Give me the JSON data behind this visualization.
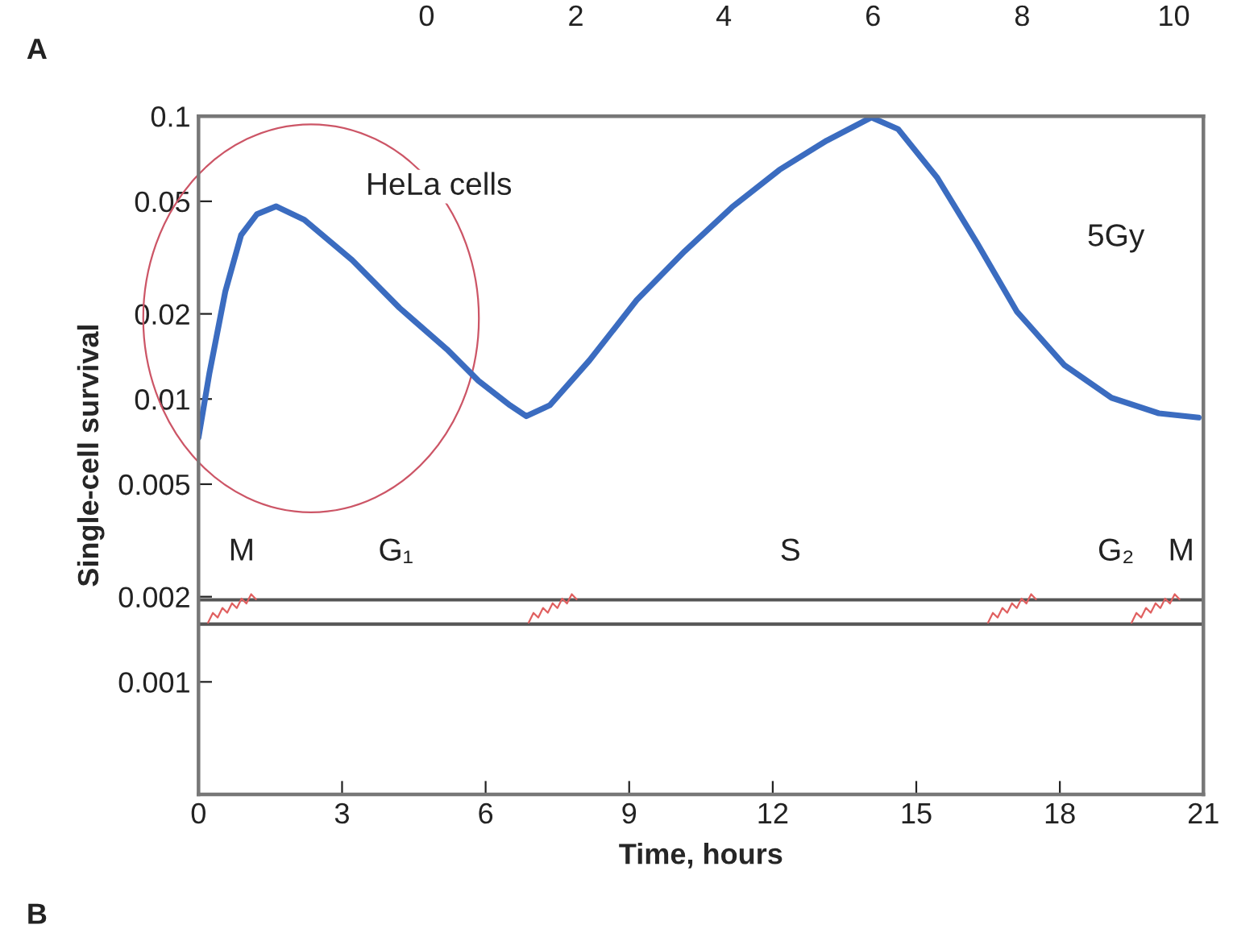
{
  "chart_data": {
    "type": "line",
    "xlabel": "Time, hours",
    "ylabel": "Single-cell survival",
    "series": [
      {
        "color": "#3b6cc0",
        "x": [
          0,
          0.23,
          0.56,
          0.89,
          1.22,
          1.62,
          2.21,
          3.21,
          4.2,
          5.19,
          5.85,
          6.51,
          6.85,
          7.34,
          8.17,
          9.16,
          10.16,
          11.15,
          12.14,
          13.13,
          14.06,
          14.62,
          15.44,
          16.27,
          17.1,
          18.09,
          19.08,
          20.07,
          20.9
        ],
        "values": [
          0.0073,
          0.0124,
          0.024,
          0.038,
          0.045,
          0.048,
          0.043,
          0.031,
          0.021,
          0.015,
          0.0116,
          0.0095,
          0.0087,
          0.0095,
          0.0137,
          0.0224,
          0.0333,
          0.0477,
          0.0646,
          0.082,
          0.099,
          0.09,
          0.0605,
          0.0356,
          0.0204,
          0.0132,
          0.0101,
          0.0089,
          0.0086
        ]
      }
    ],
    "log": "y",
    "xlim": [
      0,
      21
    ],
    "xticks": [
      0,
      3,
      6,
      9,
      12,
      15,
      18,
      21
    ],
    "ylim": [
      0.0004,
      0.1
    ],
    "yticks": [
      0.001,
      0.002,
      0.005,
      0.01,
      0.02,
      0.05,
      0.1
    ],
    "ref_lines": [
      {
        "axis": "y",
        "value": 0.00195,
        "color": "#555555"
      },
      {
        "axis": "y",
        "value": 0.0016,
        "color": "#555555"
      }
    ],
    "annotations": [
      "HeLa cells",
      "5Gy",
      "A",
      "B",
      "0",
      "2",
      "4",
      "6",
      "8",
      "10",
      "M",
      "G₁",
      "S",
      "G₂",
      "M"
    ],
    "grid": false,
    "legend": false
  }
}
